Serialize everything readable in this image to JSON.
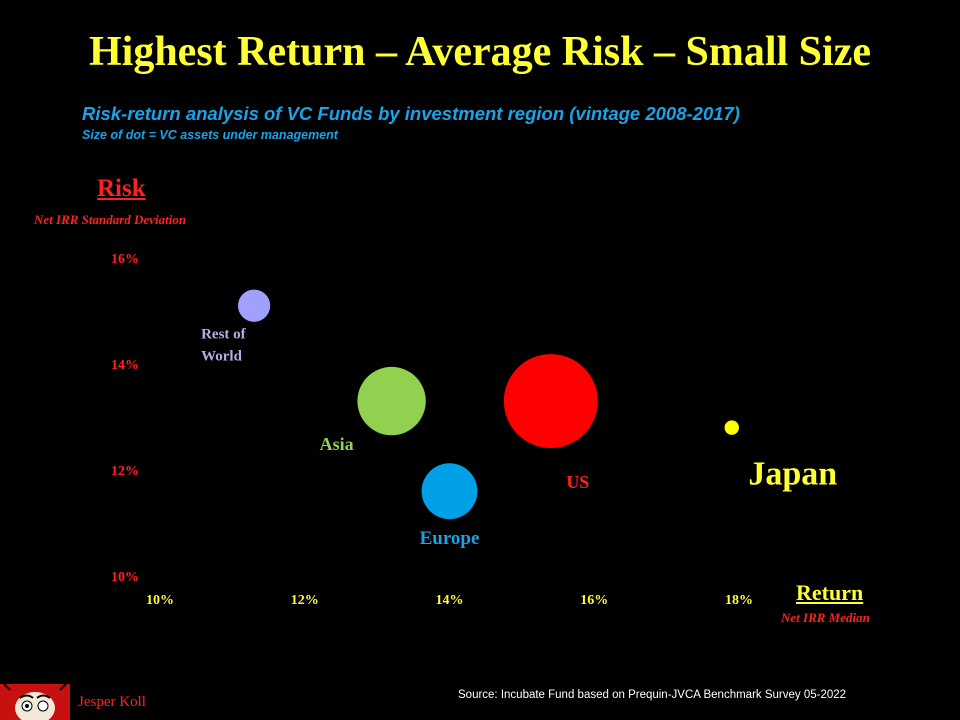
{
  "title": "Highest Return – Average Risk – Small Size",
  "subtitle": "Risk-return analysis of VC Funds by investment region (vintage 2008-2017)",
  "size_note": "Size of dot = VC assets under management",
  "risk_axis": {
    "title": "Risk",
    "subtitle": "Net IRR Standard Deviation"
  },
  "return_axis": {
    "title": "Return",
    "subtitle": "Net IRR Median"
  },
  "source": "Source: Incubate Fund based on  Prequin-JVCA  Benchmark Survey 05-2022",
  "author": "Jesper Koll",
  "colors": {
    "background": "#000000",
    "title": "#ffff33",
    "subtitle": "#1aa3e8",
    "axis_red": "#ff2020"
  },
  "chart_data": {
    "type": "scatter",
    "subtype": "bubble",
    "xlabel": "Return",
    "ylabel": "Risk",
    "xlim": [
      10,
      18
    ],
    "ylim": [
      10,
      16
    ],
    "x_ticks": [
      "10%",
      "12%",
      "14%",
      "16%",
      "18%"
    ],
    "y_ticks": [
      "10%",
      "12%",
      "14%",
      "16%"
    ],
    "grid": false,
    "points": [
      {
        "label": "Rest of World",
        "x": 11.3,
        "y": 15.1,
        "size": 1.0,
        "color": "#a0a0ff",
        "label_color": "#b0b0e8"
      },
      {
        "label": "Asia",
        "x": 13.2,
        "y": 13.3,
        "size": 4.5,
        "color": "#92d050",
        "label_color": "#92d050"
      },
      {
        "label": "Europe",
        "x": 14.0,
        "y": 11.6,
        "size": 3.0,
        "color": "#00a0e6",
        "label_color": "#1aa3e8"
      },
      {
        "label": "US",
        "x": 15.4,
        "y": 13.3,
        "size": 8.5,
        "color": "#ff0000",
        "label_color": "#ff2020"
      },
      {
        "label": "Japan",
        "x": 17.9,
        "y": 12.8,
        "size": 0.2,
        "color": "#ffff00",
        "label_color": "#ffff33"
      }
    ]
  }
}
